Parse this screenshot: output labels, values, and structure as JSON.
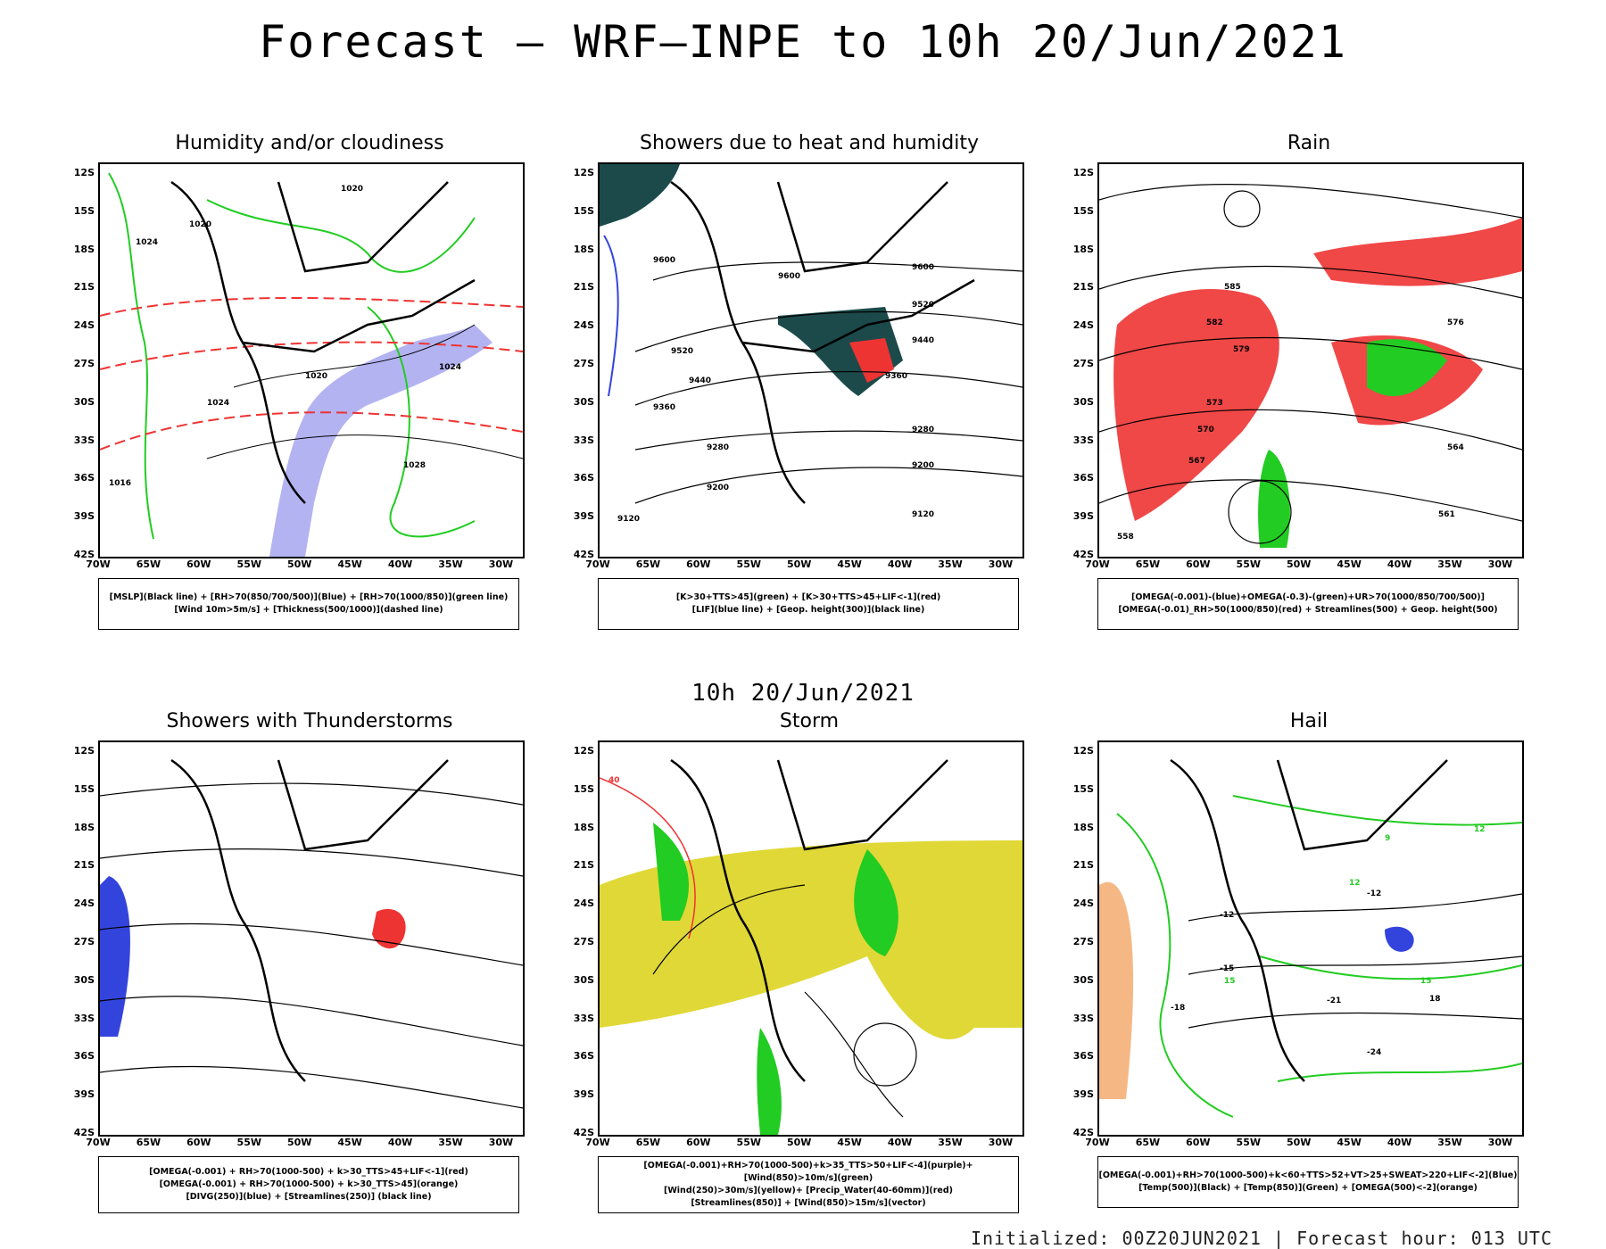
{
  "page": {
    "title": "Forecast — WRF—INPE to 10h 20/Jun/2021",
    "subtitle": "10h 20/Jun/2021",
    "footer": "Initialized: 00Z20JUN2021 | Forecast hour: 013 UTC"
  },
  "axes": {
    "lat_labels": [
      "12S",
      "15S",
      "18S",
      "21S",
      "24S",
      "27S",
      "30S",
      "33S",
      "36S",
      "39S",
      "42S"
    ],
    "lon_labels": [
      "70W",
      "65W",
      "60W",
      "55W",
      "50W",
      "45W",
      "40W",
      "35W",
      "30W"
    ]
  },
  "panels": [
    {
      "title": "Humidity and/or cloudiness",
      "legend": [
        "[MSLP](Black line) + [RH>70(850/700/500)](Blue) + [RH>70(1000/850)](green line)",
        "[Wind 10m>5m/s] + [Thickness(500/1000)](dashed line)"
      ],
      "contour_labels": [
        "1020",
        "1020",
        "1024",
        "1024",
        "1024",
        "1028",
        "1020",
        "1016"
      ]
    },
    {
      "title": "Showers due to heat and humidity",
      "legend": [
        "[K>30+TTS>45](green) + [K>30+TTS>45+LIF<-1](red)",
        "[LIF](blue line) + [Geop. height(300)](black line)"
      ],
      "contour_labels": [
        "9600",
        "9600",
        "9600",
        "9520",
        "9520",
        "9440",
        "9440",
        "9360",
        "9360",
        "9280",
        "9280",
        "9200",
        "9200",
        "9120",
        "9120"
      ]
    },
    {
      "title": "Rain",
      "legend": [
        "[OMEGA(-0.001)-(blue)+OMEGA(-0.3)-(green)+UR>70(1000/850/700/500)]",
        "[OMEGA(-0.01)_RH>50(1000/850)(red) + Streamlines(500) + Geop. height(500)"
      ],
      "contour_labels": [
        "585",
        "582",
        "579",
        "576",
        "573",
        "570",
        "567",
        "564",
        "561",
        "558"
      ]
    },
    {
      "title": "Showers with Thunderstorms",
      "legend": [
        "[OMEGA(-0.001) + RH>70(1000-500) + k>30_TTS>45+LIF<-1](red)",
        "[OMEGA(-0.001) + RH>70(1000-500) + k>30_TTS>45](orange)",
        "[DIVG(250)](blue) + [Streamlines(250)] (black line)"
      ],
      "contour_labels": []
    },
    {
      "title": "Storm",
      "legend": [
        "[OMEGA(-0.001)+RH>70(1000-500)+k>35_TTS>50+LIF<-4](purple)+[Wind(850)>10m/s](green)",
        "[Wind(250)>30m/s](yellow)+ [Precip_Water(40-60mm)](red)",
        "[Streamlines(850)] + [Wind(850)>15m/s](vector)"
      ],
      "contour_labels": [
        "40"
      ]
    },
    {
      "title": "Hail",
      "legend": [
        "[OMEGA(-0.001)+RH>70(1000-500)+k<60+TTS>52+VT>25+SWEAT>220+LIF<-2](Blue)",
        "[Temp(500)](Black) + [Temp(850)](Green) + [OMEGA(500)<-2](orange)"
      ],
      "contour_labels": [
        "-12",
        "-12",
        "-15",
        "-18",
        "-21",
        "-24",
        "12",
        "9",
        "12",
        "15",
        "15",
        "18"
      ]
    }
  ],
  "colors": {
    "black": "#000000",
    "green": "#22cc22",
    "red": "#ee3333",
    "blue": "#3344dd",
    "lightblue": "#9999ee",
    "yellow": "#e0d836",
    "darkteal": "#1c4a4a",
    "orange": "#ee8833"
  }
}
